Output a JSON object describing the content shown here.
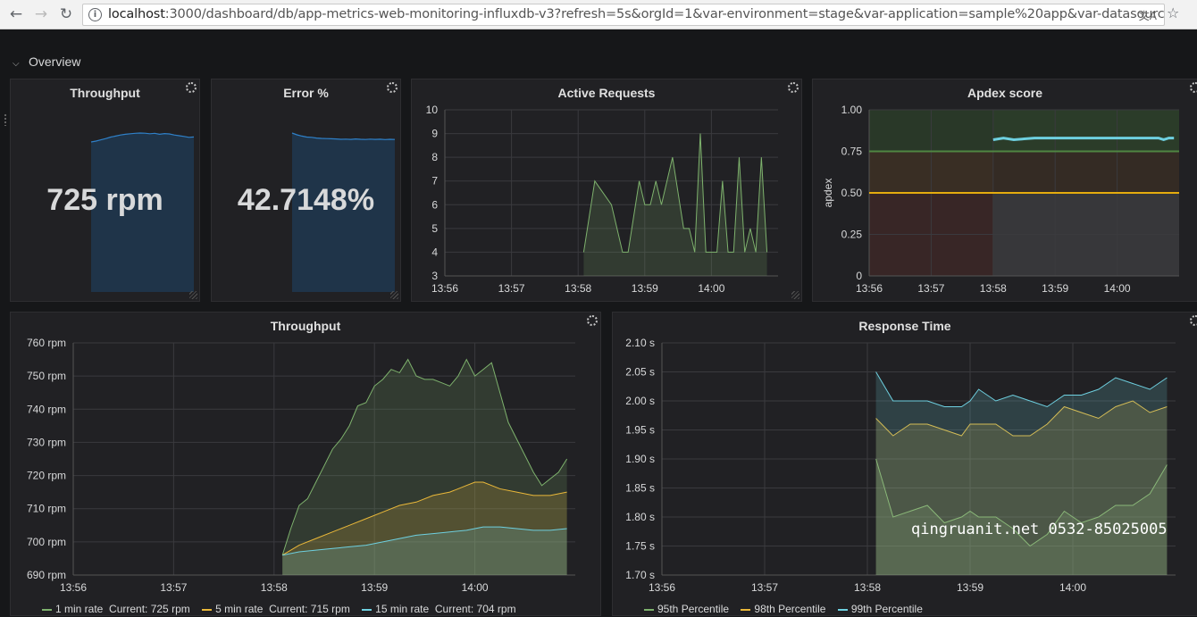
{
  "browser": {
    "back_icon": "arrow-left-icon",
    "forward_icon": "arrow-right-icon",
    "reload_icon": "reload-icon",
    "info_icon": "info-icon",
    "translate_icon": "translate-icon",
    "star_icon": "star-icon",
    "url_host": "localhost",
    "url_rest": ":3000/dashboard/db/app-metrics-web-monitoring-influxdb-v3?refresh=5s&orgId=1&var-environment=stage&var-application=sample%20app&var-datasource=Te"
  },
  "row": {
    "title": "Overview",
    "icon": "chevron-down-icon"
  },
  "panels": {
    "throughput_stat": {
      "title": "Throughput",
      "value": "725 rpm",
      "spark": [
        0.0,
        0.1,
        0.24,
        0.38,
        0.55,
        0.66,
        0.78,
        0.86,
        0.92,
        0.97,
        1.0,
        0.98,
        0.92,
        0.97,
        0.86,
        0.94,
        0.9,
        0.78,
        0.7,
        0.62,
        0.52,
        0.56
      ]
    },
    "error_stat": {
      "title": "Error %",
      "value": "42.7148%",
      "spark": [
        1.0,
        0.8,
        0.66,
        0.55,
        0.52,
        0.44,
        0.4,
        0.38,
        0.36,
        0.34,
        0.3,
        0.32,
        0.29,
        0.34,
        0.3,
        0.28,
        0.32,
        0.29,
        0.31,
        0.27,
        0.3,
        0.28
      ]
    },
    "active_requests": {
      "title": "Active Requests",
      "chart_data": {
        "type": "area",
        "xticks": [
          "13:56",
          "13:57",
          "13:58",
          "13:59",
          "14:00"
        ],
        "yticks": [
          "3",
          "4",
          "5",
          "6",
          "7",
          "8",
          "9",
          "10"
        ],
        "ylim": [
          3,
          10
        ],
        "series": [
          {
            "color": "#7eb26d",
            "x": [
              "13:58:05",
              "13:58:15",
              "13:58:30",
              "13:58:40",
              "13:58:45",
              "13:58:55",
              "13:59:00",
              "13:59:05",
              "13:59:10",
              "13:59:15",
              "13:59:20",
              "13:59:25",
              "13:59:35",
              "13:59:40",
              "13:59:45",
              "13:59:50",
              "13:59:55",
              "14:00:05",
              "14:00:10",
              "14:00:15",
              "14:00:20",
              "14:00:25",
              "14:00:30",
              "14:00:35",
              "14:00:40",
              "14:00:45",
              "14:00:50"
            ],
            "values": [
              4,
              7,
              6,
              4,
              4,
              7,
              6,
              6,
              7,
              6,
              7,
              8,
              5,
              5,
              4,
              9,
              4,
              4,
              7,
              4,
              4,
              8,
              4,
              5,
              4,
              8,
              4
            ]
          }
        ]
      }
    },
    "apdex": {
      "title": "Apdex score",
      "chart_data": {
        "type": "line",
        "ylabel": "apdex",
        "xticks": [
          "13:56",
          "13:57",
          "13:58",
          "13:59",
          "14:00"
        ],
        "yticks": [
          "0",
          "0.25",
          "0.50",
          "0.75",
          "1.00"
        ],
        "ylim": [
          0,
          1
        ],
        "thresholds": [
          {
            "value": 0.75,
            "color": "#508642"
          },
          {
            "value": 0.5,
            "color": "#e5ac0e"
          }
        ],
        "series": [
          {
            "color": "#6ed0e0",
            "x": [
              "13:58:00",
              "13:58:10",
              "13:58:20",
              "13:58:30",
              "13:58:40",
              "13:58:50",
              "13:59:00",
              "13:59:20",
              "13:59:40",
              "14:00:00",
              "14:00:20",
              "14:00:40",
              "14:00:45",
              "14:00:50",
              "14:00:55"
            ],
            "values": [
              0.82,
              0.83,
              0.82,
              0.825,
              0.83,
              0.83,
              0.83,
              0.83,
              0.83,
              0.83,
              0.83,
              0.83,
              0.82,
              0.83,
              0.83
            ]
          }
        ]
      }
    },
    "throughput": {
      "title": "Throughput",
      "chart_data": {
        "type": "area",
        "xticks": [
          "13:56",
          "13:57",
          "13:58",
          "13:59",
          "14:00"
        ],
        "yticks": [
          "690 rpm",
          "700 rpm",
          "710 rpm",
          "720 rpm",
          "730 rpm",
          "740 rpm",
          "750 rpm",
          "760 rpm"
        ],
        "ylim": [
          690,
          760
        ],
        "series": [
          {
            "name": "1 min rate",
            "current": "Current: 725 rpm",
            "color": "#7eb26d",
            "x": [
              "13:58:05",
              "13:58:10",
              "13:58:15",
              "13:58:20",
              "13:58:25",
              "13:58:30",
              "13:58:35",
              "13:58:40",
              "13:58:45",
              "13:58:50",
              "13:58:55",
              "13:59:00",
              "13:59:05",
              "13:59:10",
              "13:59:15",
              "13:59:20",
              "13:59:25",
              "13:59:30",
              "13:59:35",
              "13:59:40",
              "13:59:45",
              "13:59:50",
              "13:59:55",
              "14:00:00",
              "14:00:05",
              "14:00:10",
              "14:00:15",
              "14:00:20",
              "14:00:25",
              "14:00:30",
              "14:00:35",
              "14:00:40",
              "14:00:45",
              "14:00:50",
              "14:00:55"
            ],
            "values": [
              696,
              704,
              711,
              713,
              718,
              723,
              728,
              731,
              735,
              741,
              742,
              747,
              749,
              752,
              751,
              755,
              750,
              749,
              749,
              748,
              747,
              750,
              755,
              750,
              752,
              754,
              745,
              736,
              731,
              726,
              721,
              717,
              719,
              721,
              725
            ]
          },
          {
            "name": "5 min rate",
            "current": "Current: 715 rpm",
            "color": "#eab839",
            "x": [
              "13:58:05",
              "13:58:15",
              "13:58:25",
              "13:58:35",
              "13:58:45",
              "13:58:55",
              "13:59:05",
              "13:59:15",
              "13:59:25",
              "13:59:35",
              "13:59:45",
              "13:59:55",
              "14:00:00",
              "14:00:05",
              "14:00:15",
              "14:00:25",
              "14:00:35",
              "14:00:45",
              "14:00:55"
            ],
            "values": [
              696,
              699,
              701,
              703,
              705,
              707,
              709,
              711,
              712,
              714,
              715,
              717,
              718,
              718,
              716,
              715,
              714,
              714,
              715
            ]
          },
          {
            "name": "15 min rate",
            "current": "Current: 704 rpm",
            "color": "#6ed0e0",
            "x": [
              "13:58:05",
              "13:58:15",
              "13:58:25",
              "13:58:35",
              "13:58:45",
              "13:58:55",
              "13:59:05",
              "13:59:15",
              "13:59:25",
              "13:59:35",
              "13:59:45",
              "13:59:55",
              "14:00:05",
              "14:00:15",
              "14:00:25",
              "14:00:35",
              "14:00:45",
              "14:00:55"
            ],
            "values": [
              696,
              697,
              697.5,
              698,
              698.5,
              699,
              700,
              701,
              702,
              702.5,
              703,
              703.5,
              704.5,
              704.5,
              704,
              703.5,
              703.5,
              704
            ]
          }
        ]
      }
    },
    "response_time": {
      "title": "Response Time",
      "chart_data": {
        "type": "area",
        "xticks": [
          "13:56",
          "13:57",
          "13:58",
          "13:59",
          "14:00"
        ],
        "yticks": [
          "1.70 s",
          "1.75 s",
          "1.80 s",
          "1.85 s",
          "1.90 s",
          "1.95 s",
          "2.00 s",
          "2.05 s",
          "2.10 s"
        ],
        "ylim": [
          1.7,
          2.1
        ],
        "series": [
          {
            "name": "95th Percentile",
            "color": "#7eb26d",
            "x": [
              "13:58:05",
              "13:58:15",
              "13:58:25",
              "13:58:35",
              "13:58:45",
              "13:58:55",
              "13:59:00",
              "13:59:05",
              "13:59:15",
              "13:59:25",
              "13:59:35",
              "13:59:45",
              "13:59:55",
              "14:00:05",
              "14:00:15",
              "14:00:25",
              "14:00:35",
              "14:00:45",
              "14:00:55"
            ],
            "values": [
              1.9,
              1.8,
              1.81,
              1.82,
              1.79,
              1.8,
              1.81,
              1.8,
              1.8,
              1.78,
              1.75,
              1.77,
              1.81,
              1.79,
              1.8,
              1.82,
              1.82,
              1.84,
              1.89
            ]
          },
          {
            "name": "98th Percentile",
            "color": "#eab839",
            "x": [
              "13:58:05",
              "13:58:15",
              "13:58:25",
              "13:58:35",
              "13:58:45",
              "13:58:55",
              "13:59:00",
              "13:59:05",
              "13:59:15",
              "13:59:25",
              "13:59:35",
              "13:59:45",
              "13:59:55",
              "14:00:05",
              "14:00:15",
              "14:00:25",
              "14:00:35",
              "14:00:45",
              "14:00:55"
            ],
            "values": [
              1.97,
              1.94,
              1.96,
              1.96,
              1.95,
              1.94,
              1.96,
              1.96,
              1.96,
              1.94,
              1.94,
              1.96,
              1.99,
              1.98,
              1.97,
              1.99,
              2.0,
              1.98,
              1.99
            ]
          },
          {
            "name": "99th Percentile",
            "color": "#6ed0e0",
            "x": [
              "13:58:05",
              "13:58:15",
              "13:58:25",
              "13:58:35",
              "13:58:45",
              "13:58:55",
              "13:59:00",
              "13:59:05",
              "13:59:15",
              "13:59:25",
              "13:59:35",
              "13:59:45",
              "13:59:55",
              "14:00:05",
              "14:00:15",
              "14:00:25",
              "14:00:35",
              "14:00:45",
              "14:00:55"
            ],
            "values": [
              2.05,
              2.0,
              2.0,
              2.0,
              1.99,
              1.99,
              2.0,
              2.02,
              2.0,
              2.01,
              2.0,
              1.99,
              2.01,
              2.01,
              2.02,
              2.04,
              2.03,
              2.02,
              2.04
            ]
          }
        ]
      }
    }
  },
  "watermark": "qingruanit.net 0532-85025005"
}
